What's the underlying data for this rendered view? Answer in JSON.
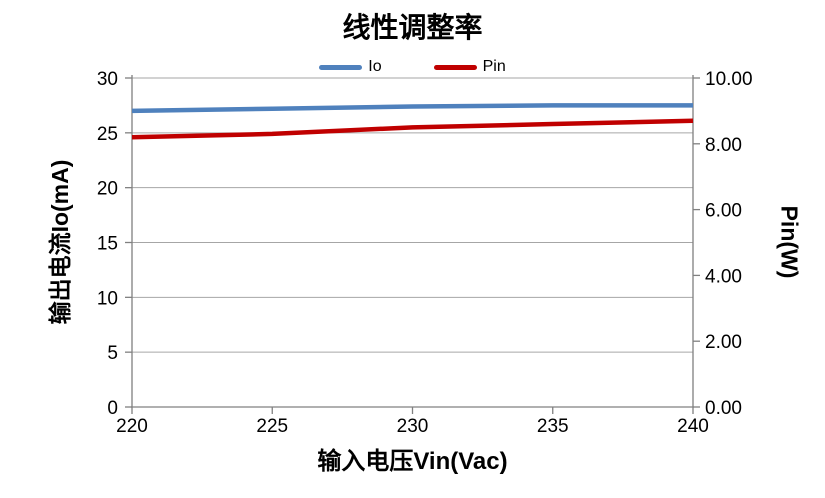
{
  "chart_data": {
    "type": "line",
    "title": "线性调整率",
    "xlabel": "输入电压Vin(Vac)",
    "x": [
      220,
      225,
      230,
      235,
      240
    ],
    "x_ticks": [
      "220",
      "225",
      "230",
      "235",
      "240"
    ],
    "series": [
      {
        "name": "Io",
        "axis": "left",
        "color": "#4F81BD",
        "values": [
          27.0,
          27.2,
          27.4,
          27.5,
          27.5
        ]
      },
      {
        "name": "Pin",
        "axis": "right",
        "color": "#C00000",
        "values": [
          8.2,
          8.3,
          8.5,
          8.6,
          8.7
        ]
      }
    ],
    "left_axis": {
      "label": "输出电流Io(mA)",
      "min": 0,
      "max": 30,
      "tick_step": 5,
      "ticks": [
        "0",
        "5",
        "10",
        "15",
        "20",
        "25",
        "30"
      ]
    },
    "right_axis": {
      "label": "Pin(W)",
      "min": 0,
      "max": 10,
      "tick_step": 2,
      "ticks": [
        "0.00",
        "2.00",
        "4.00",
        "6.00",
        "8.00",
        "10.00"
      ]
    },
    "legend": [
      "Io",
      "Pin"
    ],
    "legend_position": "top",
    "grid": "horizontal",
    "colors": {
      "grid": "#A6A6A6",
      "axis": "#808080",
      "text": "#000000"
    }
  }
}
